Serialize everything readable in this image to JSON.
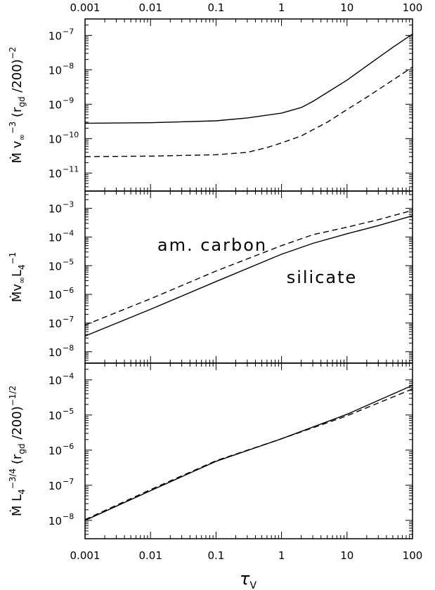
{
  "figure": {
    "x_tick_labels": [
      "0.001",
      "0.01",
      "0.1",
      "1",
      "10",
      "100"
    ],
    "x_axis_label": {
      "base": "τ",
      "sub": "V"
    }
  },
  "chart_data": [
    {
      "type": "line",
      "x_scale": "log",
      "y_scale": "log",
      "xlim": [
        0.001,
        100
      ],
      "ylim": [
        3e-12,
        3e-07
      ],
      "ylabel": {
        "parts": [
          "Ṁ v",
          "∞",
          "−3",
          " (r",
          "gd",
          " /200)",
          "−2"
        ]
      },
      "y_ticks": [
        {
          "value": 1e-11,
          "label": "10",
          "exp": "−11"
        },
        {
          "value": 1e-10,
          "label": "10",
          "exp": "−10"
        },
        {
          "value": 1e-09,
          "label": "10",
          "exp": "−9"
        },
        {
          "value": 1e-08,
          "label": "10",
          "exp": "−8"
        },
        {
          "value": 1e-07,
          "label": "10",
          "exp": "−7"
        }
      ],
      "annotations": [],
      "series": [
        {
          "style": "solid",
          "points": [
            [
              0.001,
              2.8e-10
            ],
            [
              0.01,
              2.9e-10
            ],
            [
              0.1,
              3.3e-10
            ],
            [
              0.3,
              4e-10
            ],
            [
              1,
              5.5e-10
            ],
            [
              2,
              8e-10
            ],
            [
              3,
              1.2e-09
            ],
            [
              5,
              2.2e-09
            ],
            [
              10,
              5e-09
            ],
            [
              20,
              1.3e-08
            ],
            [
              50,
              4.5e-08
            ],
            [
              100,
              1.1e-07
            ]
          ]
        },
        {
          "style": "dashed",
          "points": [
            [
              0.001,
              3e-11
            ],
            [
              0.01,
              3.1e-11
            ],
            [
              0.1,
              3.4e-11
            ],
            [
              0.3,
              4e-11
            ],
            [
              0.6,
              5.5e-11
            ],
            [
              1,
              7.5e-11
            ],
            [
              2,
              1.2e-10
            ],
            [
              5,
              3e-10
            ],
            [
              10,
              7e-10
            ],
            [
              20,
              1.6e-09
            ],
            [
              50,
              5e-09
            ],
            [
              100,
              1.2e-08
            ]
          ]
        }
      ]
    },
    {
      "type": "line",
      "x_scale": "log",
      "y_scale": "log",
      "xlim": [
        0.001,
        100
      ],
      "ylim": [
        4e-09,
        0.004
      ],
      "ylabel": {
        "parts": [
          "Ṁv",
          "∞",
          "L",
          "4",
          "−1"
        ]
      },
      "y_ticks": [
        {
          "value": 1e-08,
          "label": "10",
          "exp": "−8"
        },
        {
          "value": 1e-07,
          "label": "10",
          "exp": "−7"
        },
        {
          "value": 1e-06,
          "label": "10",
          "exp": "−6"
        },
        {
          "value": 1e-05,
          "label": "10",
          "exp": "−5"
        },
        {
          "value": 0.0001,
          "label": "10",
          "exp": "−4"
        },
        {
          "value": 0.001,
          "label": "10",
          "exp": "−3"
        }
      ],
      "annotations": [
        "am. carbon",
        "silicate"
      ],
      "series": [
        {
          "style": "solid",
          "points": [
            [
              0.001,
              3.5e-08
            ],
            [
              0.01,
              3e-07
            ],
            [
              0.1,
              2.8e-06
            ],
            [
              1,
              2.5e-05
            ],
            [
              3,
              6e-05
            ],
            [
              10,
              0.00013
            ],
            [
              30,
              0.00025
            ],
            [
              100,
              0.00055
            ]
          ]
        },
        {
          "style": "dashed",
          "points": [
            [
              0.001,
              8.5e-08
            ],
            [
              0.01,
              7e-07
            ],
            [
              0.1,
              6.5e-06
            ],
            [
              1,
              5e-05
            ],
            [
              3,
              0.00012
            ],
            [
              10,
              0.00022
            ],
            [
              30,
              0.0004
            ],
            [
              100,
              0.00085
            ]
          ]
        }
      ]
    },
    {
      "type": "line",
      "x_scale": "log",
      "y_scale": "log",
      "xlim": [
        0.001,
        100
      ],
      "ylim": [
        3e-09,
        0.0003
      ],
      "ylabel": {
        "parts": [
          "Ṁ L",
          "4",
          "−3/4",
          " (r",
          "gd",
          " /200)",
          "−1/2"
        ]
      },
      "y_ticks": [
        {
          "value": 1e-08,
          "label": "10",
          "exp": "−8"
        },
        {
          "value": 1e-07,
          "label": "10",
          "exp": "−7"
        },
        {
          "value": 1e-06,
          "label": "10",
          "exp": "−6"
        },
        {
          "value": 1e-05,
          "label": "10",
          "exp": "−5"
        },
        {
          "value": 0.0001,
          "label": "10",
          "exp": "−4"
        }
      ],
      "annotations": [],
      "series": [
        {
          "style": "solid",
          "points": [
            [
              0.001,
              1e-08
            ],
            [
              0.01,
              7e-08
            ],
            [
              0.1,
              4.8e-07
            ],
            [
              1,
              2.1e-06
            ],
            [
              10,
              1.05e-05
            ],
            [
              100,
              7e-05
            ]
          ]
        },
        {
          "style": "dashed",
          "points": [
            [
              0.001,
              1.05e-08
            ],
            [
              0.01,
              7.5e-08
            ],
            [
              0.1,
              5e-07
            ],
            [
              1,
              2.1e-06
            ],
            [
              10,
              9.5e-06
            ],
            [
              100,
              5.5e-05
            ]
          ]
        }
      ]
    }
  ]
}
